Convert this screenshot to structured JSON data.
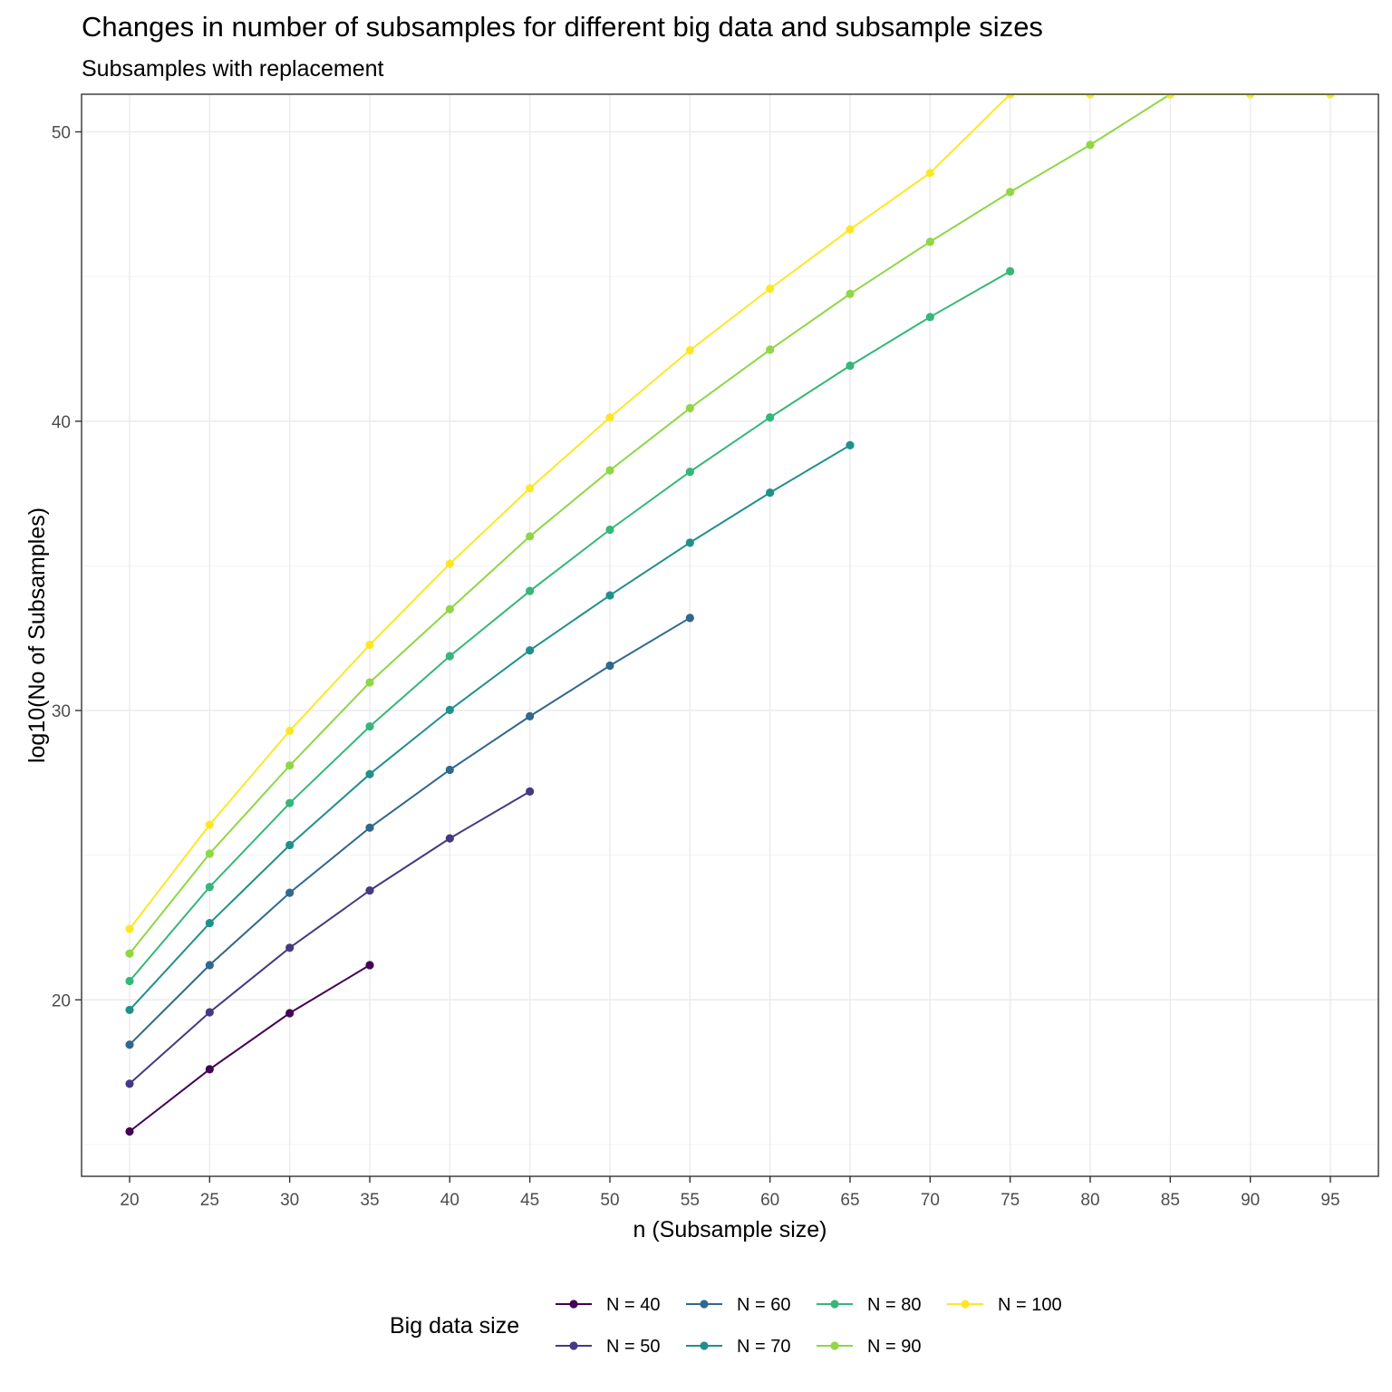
{
  "chart_data": {
    "type": "line",
    "title": "Changes in number of subsamples for different big data and subsample sizes",
    "subtitle": "Subsamples with replacement",
    "xlabel": "n (Subsample size)",
    "ylabel": "log10(No of Subsamples)",
    "xlim": [
      17,
      98
    ],
    "ylim": [
      13.9,
      51.3
    ],
    "x_ticks": [
      20,
      25,
      30,
      35,
      40,
      45,
      50,
      55,
      60,
      65,
      70,
      75,
      80,
      85,
      90,
      95
    ],
    "y_ticks": [
      20,
      30,
      40,
      50
    ],
    "y_minor_ticks": [
      15,
      25,
      35,
      45
    ],
    "grid": true,
    "legend": {
      "title": "Big data size",
      "position": "bottom",
      "layout": "2 rows, column-major"
    },
    "series": [
      {
        "name": "N = 40",
        "color": "#440154",
        "x": [
          20,
          25,
          30,
          35
        ],
        "y": [
          15.45,
          17.6,
          19.54,
          21.2
        ]
      },
      {
        "name": "N = 50",
        "color": "#443A83",
        "x": [
          20,
          25,
          30,
          35,
          40,
          45
        ],
        "y": [
          17.1,
          19.57,
          21.8,
          23.78,
          25.58,
          27.2
        ]
      },
      {
        "name": "N = 60",
        "color": "#31688E",
        "x": [
          20,
          25,
          30,
          35,
          40,
          45,
          50,
          55
        ],
        "y": [
          18.45,
          21.2,
          23.7,
          25.95,
          27.95,
          29.8,
          31.55,
          33.2
        ]
      },
      {
        "name": "N = 70",
        "color": "#21908C",
        "x": [
          20,
          25,
          30,
          35,
          40,
          45,
          50,
          55,
          60,
          65
        ],
        "y": [
          19.65,
          22.65,
          25.35,
          27.8,
          30.02,
          32.08,
          33.98,
          35.8,
          37.53,
          39.17
        ]
      },
      {
        "name": "N = 80",
        "color": "#35B779",
        "x": [
          20,
          25,
          30,
          35,
          40,
          45,
          50,
          55,
          60,
          65,
          70,
          75
        ],
        "y": [
          20.65,
          23.9,
          26.8,
          29.45,
          31.88,
          34.13,
          36.25,
          38.25,
          40.13,
          41.92,
          43.6,
          45.18
        ]
      },
      {
        "name": "N = 90",
        "color": "#8FD744",
        "x": [
          20,
          25,
          30,
          35,
          40,
          45,
          50,
          55,
          60,
          65,
          70,
          75,
          80,
          85
        ],
        "y": [
          21.6,
          25.05,
          28.1,
          30.97,
          33.5,
          36.02,
          38.3,
          40.45,
          42.47,
          44.4,
          46.2,
          47.92,
          49.55,
          51.3
        ]
      },
      {
        "name": "N = 100",
        "color": "#FDE725",
        "x": [
          20,
          25,
          30,
          35,
          40,
          45,
          50,
          55,
          60,
          65,
          70,
          75,
          80,
          85,
          90,
          95
        ],
        "y": [
          22.45,
          26.05,
          29.3,
          32.27,
          35.07,
          37.68,
          40.13,
          42.45,
          44.58,
          46.63,
          48.58,
          51.3,
          51.3,
          51.3,
          51.3,
          51.3
        ]
      }
    ]
  }
}
